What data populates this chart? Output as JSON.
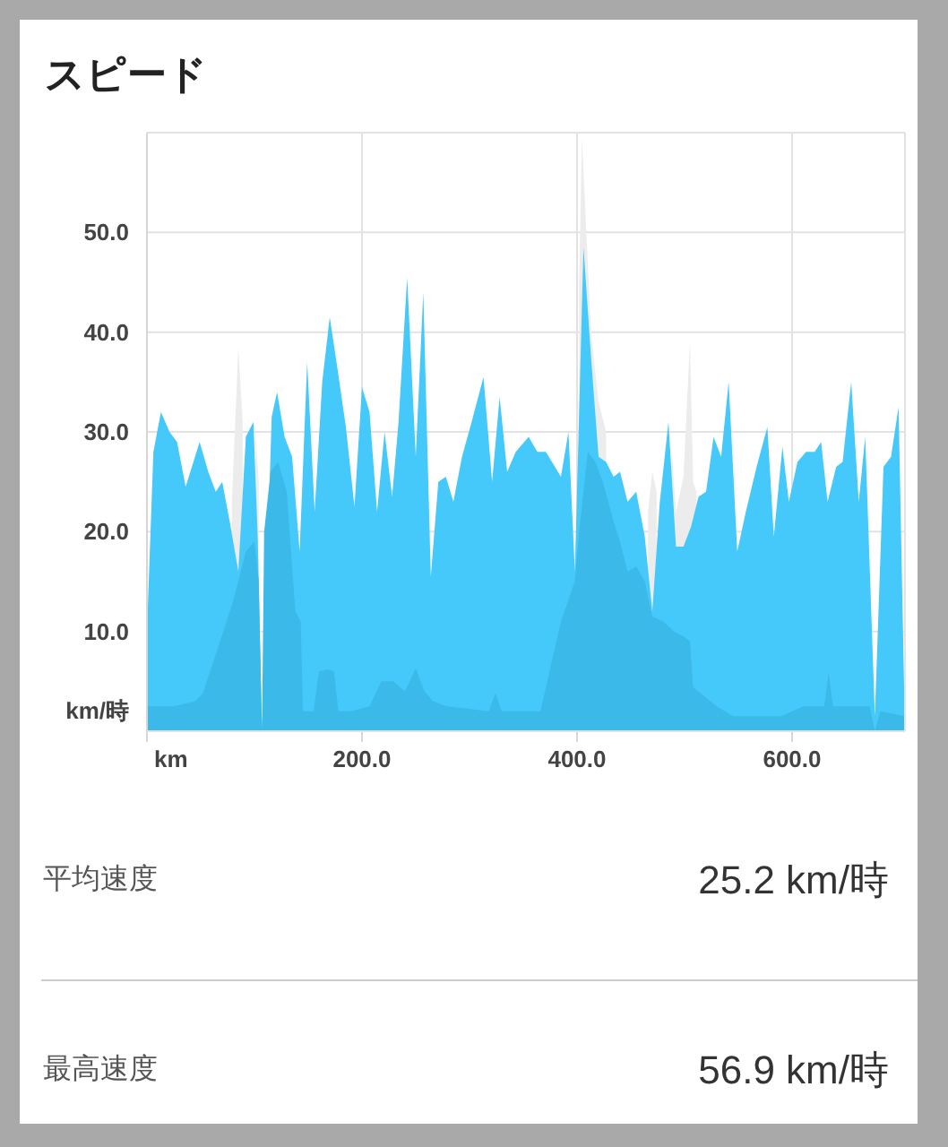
{
  "chart_data": {
    "type": "area",
    "title": "スピード",
    "xlabel": "km",
    "ylabel": "km/時",
    "grid": true,
    "xlim": [
      0,
      705
    ],
    "xticks": [
      {
        "value": 0,
        "label": null
      },
      {
        "value": 200,
        "label": "200.0"
      },
      {
        "value": 400,
        "label": "400.0"
      },
      {
        "value": 600,
        "label": "600.0"
      }
    ],
    "ylim": [
      0,
      60
    ],
    "yticks": [
      {
        "value": 0,
        "label": null
      },
      {
        "value": 10,
        "label": "10.0"
      },
      {
        "value": 20,
        "label": "20.0"
      },
      {
        "value": 30,
        "label": "30.0"
      },
      {
        "value": 40,
        "label": "40.0"
      },
      {
        "value": 50,
        "label": "50.0"
      },
      {
        "value": 60,
        "label": null
      }
    ],
    "series": [
      {
        "color": "#ececec",
        "x": [
          79,
          85,
          89
        ],
        "values": [
          23,
          38.5,
          31
        ]
      },
      {
        "color": "#ececec",
        "x": [
          101,
          104
        ],
        "values": [
          30,
          25
        ]
      },
      {
        "color": "#ececec",
        "x": [
          402,
          404.5,
          413,
          420,
          427
        ],
        "values": [
          45,
          59.5,
          40,
          33,
          30
        ]
      },
      {
        "color": "#ececec",
        "x": [
          466,
          470,
          474
        ],
        "values": [
          22,
          26,
          24
        ]
      },
      {
        "color": "#ececec",
        "x": [
          488,
          492,
          499,
          505,
          508,
          511
        ],
        "values": [
          28,
          22,
          25.5,
          39,
          25,
          24
        ]
      },
      {
        "color": "#45c8fa",
        "x": [
          0,
          6,
          13,
          21,
          28,
          36,
          49,
          57,
          64,
          70,
          77,
          85,
          92,
          99,
          103,
          107,
          116,
          121,
          128,
          135,
          142,
          149,
          156,
          163,
          170,
          177,
          185,
          193,
          200,
          207,
          214,
          221,
          228,
          234,
          242,
          250,
          257,
          264,
          271,
          278,
          285,
          293,
          302,
          313,
          321,
          328,
          335,
          343,
          355,
          363,
          371,
          385,
          392,
          398,
          406,
          413,
          420,
          427,
          434,
          440,
          447,
          455,
          463,
          470,
          477,
          485,
          492,
          499,
          506,
          513,
          520,
          527,
          534,
          541,
          549,
          557,
          567,
          577,
          583,
          591,
          597,
          605,
          613,
          621,
          627,
          633,
          641,
          647,
          655,
          662,
          668,
          677,
          685,
          692,
          699,
          705
        ],
        "values": [
          10,
          28,
          32,
          30,
          29,
          24.5,
          29,
          26,
          24,
          25,
          21,
          16,
          29.5,
          31,
          19.5,
          0,
          31.5,
          34,
          29.5,
          27.5,
          18,
          37,
          22,
          35,
          41.5,
          36.5,
          30.5,
          22.5,
          34.5,
          32,
          22,
          30,
          23.5,
          31,
          45.5,
          27.5,
          44,
          15.5,
          25,
          25.5,
          23,
          27.5,
          31,
          35.5,
          25,
          33.5,
          26,
          28,
          29.5,
          28,
          28,
          25.5,
          30,
          16,
          48.5,
          37.5,
          27.5,
          27,
          25.5,
          26,
          23,
          24,
          19.5,
          12,
          23,
          31,
          18.5,
          18.5,
          20.5,
          23.5,
          24,
          29.5,
          27.5,
          35,
          18,
          22,
          26.5,
          30.5,
          19.5,
          28.5,
          23,
          27,
          28,
          28,
          29,
          23,
          26.5,
          27,
          35,
          23,
          29.5,
          1.5,
          26.5,
          27.5,
          32.5,
          0
        ]
      },
      {
        "color": "#3bb9e8",
        "x": [
          0,
          25,
          45,
          52,
          68,
          80,
          85,
          92,
          100,
          104,
          107,
          109,
          115,
          122,
          130,
          138,
          143,
          145,
          155,
          160,
          168,
          174,
          178,
          190,
          207,
          218,
          229,
          240,
          250,
          258,
          266,
          279,
          296,
          318,
          324,
          330,
          352,
          366,
          385,
          398,
          402,
          410,
          417,
          424,
          434,
          440,
          447,
          455,
          463,
          470,
          480,
          490,
          499,
          505,
          508,
          530,
          545,
          590,
          610,
          630,
          634,
          638,
          672,
          677,
          682,
          705
        ],
        "values": [
          2.5,
          2.5,
          3,
          3.8,
          9,
          13,
          15,
          18,
          19,
          15,
          0,
          20,
          26,
          27,
          24,
          12,
          11,
          2,
          2,
          6,
          6.2,
          6,
          2,
          2,
          2.5,
          5,
          5,
          4,
          6.3,
          4,
          3,
          2.5,
          2.3,
          2,
          3.8,
          2,
          2,
          2,
          11,
          15,
          20,
          28,
          27,
          25,
          21,
          19,
          16,
          16.5,
          15,
          11.5,
          11,
          10,
          9.5,
          9,
          4.4,
          2.5,
          1.5,
          1.5,
          2.5,
          2.5,
          5.9,
          2.5,
          2.5,
          0,
          2,
          1.5
        ]
      }
    ],
    "annotations": [
      "平均速度",
      "25.2 km/時",
      "最高速度",
      "56.9 km/時"
    ]
  }
}
